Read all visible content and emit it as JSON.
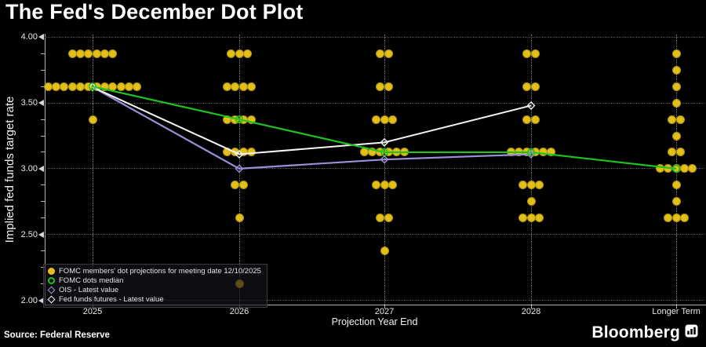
{
  "source": "Source: Federal Reserve",
  "brand": {
    "name": "Bloomberg",
    "icon": "bar-chart-icon"
  },
  "chart_data": {
    "type": "scatter",
    "title": "The Fed's December Dot Plot",
    "xlabel": "Projection Year End",
    "ylabel": "Implied fed funds target rate",
    "ylim": [
      2.0,
      4.0
    ],
    "ytick_step_major": 0.5,
    "ytick_step_minor": 0.125,
    "yticks": [
      "4.00",
      "3.50",
      "3.00",
      "2.50",
      "2.00"
    ],
    "categories": [
      "2025",
      "2026",
      "2027",
      "2028",
      "Longer Term"
    ],
    "grid": true,
    "legend_position": "bottom-left",
    "colors": {
      "background": "#000000",
      "dot": "#e3bf1a",
      "median": "#1ec41e",
      "ois": "#9b8fd8",
      "futures": "#f5f5f5",
      "grid": "#585858",
      "axis": "#b5b5b5",
      "text": "#e6e6e6"
    },
    "dot_distributions": [
      {
        "category": "2025",
        "levels": [
          {
            "rate": 3.875,
            "count": 6
          },
          {
            "rate": 3.625,
            "count": 12
          },
          {
            "rate": 3.375,
            "count": 1
          }
        ]
      },
      {
        "category": "2026",
        "levels": [
          {
            "rate": 3.875,
            "count": 3
          },
          {
            "rate": 3.625,
            "count": 4
          },
          {
            "rate": 3.375,
            "count": 4
          },
          {
            "rate": 3.125,
            "count": 4
          },
          {
            "rate": 2.875,
            "count": 2
          },
          {
            "rate": 2.625,
            "count": 1
          },
          {
            "rate": 2.125,
            "count": 1
          }
        ]
      },
      {
        "category": "2027",
        "levels": [
          {
            "rate": 3.875,
            "count": 2
          },
          {
            "rate": 3.625,
            "count": 2
          },
          {
            "rate": 3.375,
            "count": 3
          },
          {
            "rate": 3.125,
            "count": 6
          },
          {
            "rate": 2.875,
            "count": 3
          },
          {
            "rate": 2.625,
            "count": 2
          },
          {
            "rate": 2.375,
            "count": 1
          }
        ]
      },
      {
        "category": "2028",
        "levels": [
          {
            "rate": 3.875,
            "count": 2
          },
          {
            "rate": 3.625,
            "count": 2
          },
          {
            "rate": 3.375,
            "count": 2
          },
          {
            "rate": 3.125,
            "count": 6
          },
          {
            "rate": 2.875,
            "count": 3
          },
          {
            "rate": 2.75,
            "count": 1
          },
          {
            "rate": 2.625,
            "count": 3
          }
        ]
      },
      {
        "category": "Longer Term",
        "levels": [
          {
            "rate": 3.875,
            "count": 1
          },
          {
            "rate": 3.75,
            "count": 1
          },
          {
            "rate": 3.625,
            "count": 1
          },
          {
            "rate": 3.5,
            "count": 1
          },
          {
            "rate": 3.375,
            "count": 2
          },
          {
            "rate": 3.25,
            "count": 1
          },
          {
            "rate": 3.125,
            "count": 2
          },
          {
            "rate": 3.0,
            "count": 5
          },
          {
            "rate": 2.875,
            "count": 1
          },
          {
            "rate": 2.75,
            "count": 1
          },
          {
            "rate": 2.625,
            "count": 3
          }
        ]
      }
    ],
    "series": [
      {
        "name": "OIS - Latest value",
        "marker": "open-diamond",
        "color_key": "ois",
        "x": [
          "2025",
          "2026",
          "2027",
          "2028"
        ],
        "values": [
          3.62,
          3.0,
          3.07,
          3.11
        ]
      },
      {
        "name": "Fed funds futures - Latest value",
        "marker": "open-diamond",
        "color_key": "futures",
        "x": [
          "2025",
          "2026",
          "2027",
          "2028"
        ],
        "values": [
          3.62,
          3.11,
          3.2,
          3.48
        ]
      },
      {
        "name": "FOMC dots median",
        "marker": "open-circle",
        "color_key": "median",
        "x": [
          "2025",
          "2026",
          "2027",
          "2028",
          "Longer Term"
        ],
        "values": [
          3.625,
          3.375,
          3.125,
          3.125,
          3.0
        ]
      }
    ],
    "legend": [
      {
        "marker": "filled-circle",
        "color_key": "dot",
        "label": "FOMC members' dot projections for meeting date 12/10/2025"
      },
      {
        "marker": "open-circle",
        "color_key": "median",
        "label": "FOMC dots median"
      },
      {
        "marker": "open-diamond",
        "color_key": "ois",
        "label": "OIS - Latest value"
      },
      {
        "marker": "open-diamond",
        "color_key": "futures",
        "label": "Fed funds futures - Latest value"
      }
    ]
  }
}
